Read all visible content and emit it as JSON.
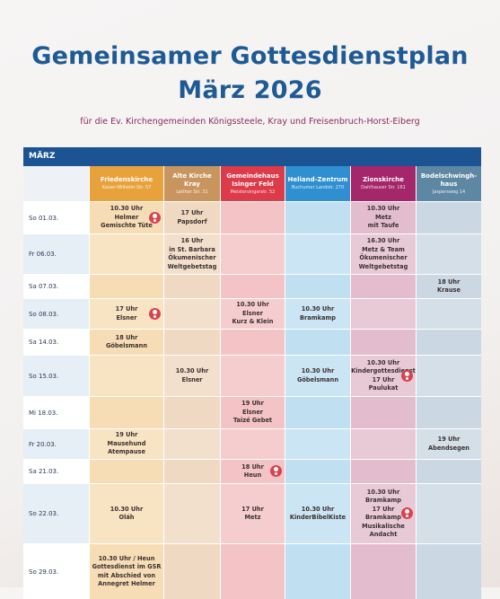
{
  "header": {
    "title": [
      "Gemeinsamer Gottesdienstplan",
      "März 2026"
    ],
    "subtitle": "für die Ev. Kirchengemeinden Königssteele, Kray und Freisenbruch-Horst-Eiberg"
  },
  "table": {
    "month": "MÄRZ",
    "columns": [
      {
        "name": "Friedenskirche",
        "address": "Kaiser-Wilhelm-Str. 57",
        "color": "#e9a23b",
        "fill": "#f7ddb6"
      },
      {
        "name": "Alte Kirche Kray",
        "address": "Leither Str. 31",
        "color": "#c9955f",
        "fill": "#efd9c2"
      },
      {
        "name": "Gemeindehaus Isinger Feld",
        "address": "Meistersingerstr. 52",
        "color": "#dd3a4a",
        "fill": "#f4c3c5"
      },
      {
        "name": "Heliand-Zentrum",
        "address": "Buchumer Landstr. 270",
        "color": "#2f8fd0",
        "fill": "#c0e0f2"
      },
      {
        "name": "Zionskirche",
        "address": "Dahlhauser Str. 161",
        "color": "#a4266b",
        "fill": "#e3bdce"
      },
      {
        "name": "Bodelschwingh-haus",
        "address": "Jaspersweg 14",
        "color": "#5d87a3",
        "fill": "#cbd8e3"
      }
    ],
    "rows": [
      {
        "date": "So 01.03.",
        "cells": [
          {
            "lines": [
              "10.30 Uhr",
              "Helmer",
              "Gemischte Tüte"
            ],
            "icon": true
          },
          {
            "lines": [
              "17 Uhr",
              "Papsdorf"
            ]
          },
          {
            "lines": []
          },
          {
            "lines": []
          },
          {
            "lines": [
              "10.30 Uhr",
              "Metz",
              "mit Taufe"
            ]
          },
          {
            "lines": []
          }
        ]
      },
      {
        "date": "Fr 06.03.",
        "cells": [
          {
            "lines": []
          },
          {
            "lines": [
              "16 Uhr",
              "in St. Barbara",
              "Ökumenischer",
              "Weltgebetstag"
            ]
          },
          {
            "lines": []
          },
          {
            "lines": []
          },
          {
            "lines": [
              "16.30 Uhr",
              "Metz & Team",
              "Ökumenischer",
              "Weltgebetstag"
            ]
          },
          {
            "lines": []
          }
        ]
      },
      {
        "date": "Sa 07.03.",
        "cells": [
          {
            "lines": []
          },
          {
            "lines": []
          },
          {
            "lines": []
          },
          {
            "lines": []
          },
          {
            "lines": []
          },
          {
            "lines": [
              "18 Uhr",
              "Krause"
            ]
          }
        ]
      },
      {
        "date": "So 08.03.",
        "cells": [
          {
            "lines": [
              "17 Uhr",
              "Elsner"
            ],
            "icon": true
          },
          {
            "lines": []
          },
          {
            "lines": [
              "10.30 Uhr",
              "Elsner",
              "Kurz & Klein"
            ]
          },
          {
            "lines": [
              "10.30 Uhr",
              "Bramkamp"
            ]
          },
          {
            "lines": []
          },
          {
            "lines": []
          }
        ]
      },
      {
        "date": "Sa 14.03.",
        "cells": [
          {
            "lines": [
              "18 Uhr",
              "Göbelsmann"
            ]
          },
          {
            "lines": []
          },
          {
            "lines": []
          },
          {
            "lines": []
          },
          {
            "lines": []
          },
          {
            "lines": []
          }
        ]
      },
      {
        "date": "So 15.03.",
        "cells": [
          {
            "lines": []
          },
          {
            "lines": [
              "10.30 Uhr",
              "Elsner"
            ]
          },
          {
            "lines": []
          },
          {
            "lines": [
              "10.30 Uhr",
              "Göbelsmann"
            ]
          },
          {
            "lines": [
              "10.30 Uhr",
              "Kindergottesdienst",
              "17 Uhr",
              "Paulukat"
            ],
            "icon": true
          },
          {
            "lines": []
          }
        ]
      },
      {
        "date": "Mi 18.03.",
        "cells": [
          {
            "lines": []
          },
          {
            "lines": []
          },
          {
            "lines": [
              "19 Uhr",
              "Elsner",
              "Taizé Gebet"
            ]
          },
          {
            "lines": []
          },
          {
            "lines": []
          },
          {
            "lines": []
          }
        ]
      },
      {
        "date": "Fr 20.03.",
        "cells": [
          {
            "lines": [
              "19 Uhr",
              "Mausehund",
              "Atempause"
            ]
          },
          {
            "lines": []
          },
          {
            "lines": []
          },
          {
            "lines": []
          },
          {
            "lines": []
          },
          {
            "lines": [
              "19 Uhr",
              "Abendsegen"
            ]
          }
        ]
      },
      {
        "date": "Sa 21.03.",
        "cells": [
          {
            "lines": []
          },
          {
            "lines": []
          },
          {
            "lines": [
              "18 Uhr",
              "Heun"
            ],
            "icon": true
          },
          {
            "lines": []
          },
          {
            "lines": []
          },
          {
            "lines": []
          }
        ]
      },
      {
        "date": "So 22.03.",
        "cells": [
          {
            "lines": [
              "10.30 Uhr",
              "Oláh"
            ]
          },
          {
            "lines": []
          },
          {
            "lines": [
              "17 Uhr",
              "Metz"
            ]
          },
          {
            "lines": [
              "10.30 Uhr",
              "KinderBibelKiste"
            ]
          },
          {
            "lines": [
              "10.30 Uhr",
              "Bramkamp",
              "17 Uhr",
              "Bramkamp",
              "Musikalische",
              "Andacht"
            ],
            "icon": true
          },
          {
            "lines": []
          }
        ]
      },
      {
        "date": "So 29.03.",
        "cells": [
          {
            "lines": [
              "10.30 Uhr / Heun",
              "Gottesdienst im GSR",
              "mit Abschied von",
              "Annegret Helmer"
            ]
          },
          {
            "lines": []
          },
          {
            "lines": []
          },
          {
            "lines": []
          },
          {
            "lines": []
          },
          {
            "lines": []
          }
        ]
      }
    ]
  }
}
